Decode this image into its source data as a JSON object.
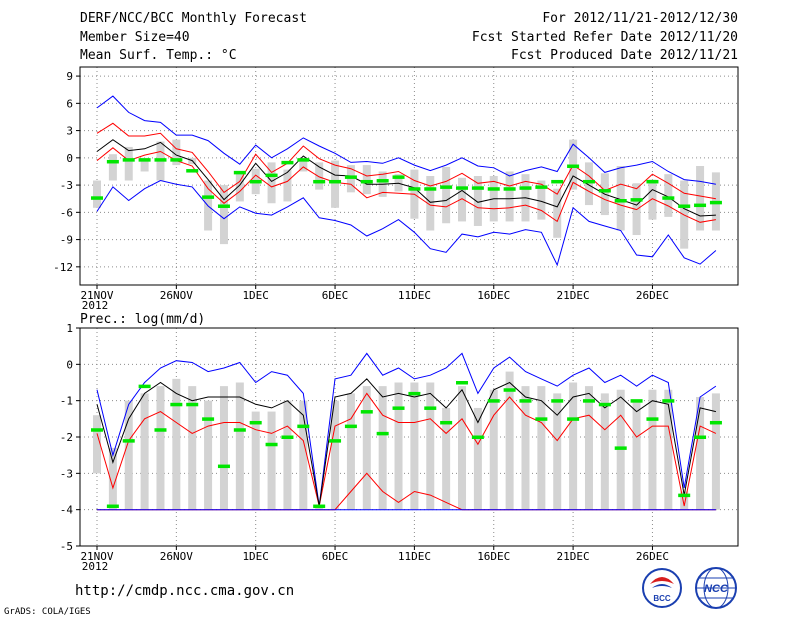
{
  "header": {
    "title": "DERF/NCC/BCC Monthly Forecast",
    "member_size": "Member Size=40",
    "variable": "Mean Surf. Temp.: °C",
    "period": "For 2012/11/21-2012/12/30",
    "started": "Fcst Started Refer Date 2012/11/20",
    "produced": "Fcst Produced Date 2012/11/21"
  },
  "footer": {
    "url": "http://cmdp.ncc.cma.gov.cn",
    "credit": "GrADS: COLA/IGES",
    "logo_left_text": "BCC",
    "logo_right_text": "NCC"
  },
  "colors": {
    "outer": "#0000ff",
    "inner": "#ff0000",
    "mean": "#000000",
    "bar": "#d3d3d3",
    "marker": "#00e600",
    "grid": "#8c8c8c"
  },
  "chart_data": [
    {
      "type": "line",
      "title": "Mean Surf. Temp.: °C",
      "xlabel": "",
      "ylabel": "",
      "ylim": [
        -14,
        10
      ],
      "yticks": [
        9,
        6,
        3,
        0,
        -3,
        -6,
        -9,
        -12
      ],
      "xtick_labels": [
        "21NOV",
        "26NOV",
        "1DEC",
        "6DEC",
        "11DEC",
        "16DEC",
        "21DEC",
        "26DEC"
      ],
      "xtick_days": [
        0,
        5,
        10,
        15,
        20,
        25,
        30,
        35
      ],
      "year_label": "2012",
      "days": 40,
      "series": [
        {
          "name": "upper-blue",
          "values": [
            5.5,
            6.8,
            5.0,
            4.1,
            3.9,
            2.5,
            2.5,
            1.9,
            0.5,
            -0.7,
            1.4,
            0.0,
            1.0,
            2.2,
            1.3,
            0.5,
            -0.5,
            -0.4,
            -0.6,
            0.0,
            -0.8,
            -1.4,
            -0.8,
            0.0,
            -0.9,
            -1.1,
            -2.0,
            -1.4,
            -1.0,
            -1.5,
            1.5,
            0.0,
            -1.6,
            -1.1,
            -0.8,
            -0.4,
            -1.5,
            -2.4,
            -2.6,
            -2.9
          ]
        },
        {
          "name": "upper-red",
          "values": [
            2.7,
            3.8,
            2.4,
            2.4,
            2.7,
            1.0,
            0.6,
            -1.5,
            -3.8,
            -2.6,
            0.4,
            -1.6,
            -0.6,
            1.3,
            -0.1,
            -0.8,
            -1.2,
            -2.0,
            -1.8,
            -1.5,
            -2.5,
            -3.1,
            -2.6,
            -1.7,
            -2.8,
            -2.6,
            -3.1,
            -2.6,
            -2.9,
            -4.0,
            -0.8,
            -2.0,
            -3.6,
            -2.9,
            -3.4,
            -1.8,
            -2.8,
            -3.9,
            -4.2,
            -4.5
          ]
        },
        {
          "name": "mean",
          "values": [
            0.7,
            2.0,
            0.8,
            1.0,
            1.7,
            0.3,
            -0.3,
            -2.4,
            -4.6,
            -3.0,
            -0.6,
            -2.6,
            -1.6,
            0.2,
            -1.0,
            -1.9,
            -2.0,
            -2.9,
            -2.9,
            -2.8,
            -3.3,
            -4.9,
            -4.7,
            -3.6,
            -4.9,
            -4.5,
            -4.5,
            -4.4,
            -4.8,
            -5.4,
            -2.0,
            -3.0,
            -4.0,
            -4.6,
            -5.2,
            -3.5,
            -4.3,
            -5.6,
            -6.4,
            -6.3
          ]
        },
        {
          "name": "lower-red",
          "values": [
            -0.3,
            1.1,
            -0.3,
            0.3,
            0.7,
            -0.3,
            -0.9,
            -3.4,
            -5.0,
            -3.7,
            -1.9,
            -3.2,
            -2.6,
            -1.0,
            -2.1,
            -2.7,
            -2.9,
            -4.4,
            -3.8,
            -3.9,
            -4.0,
            -5.2,
            -5.4,
            -4.5,
            -5.5,
            -5.6,
            -5.5,
            -5.2,
            -5.8,
            -7.0,
            -2.7,
            -3.7,
            -4.6,
            -5.2,
            -5.7,
            -4.5,
            -5.3,
            -6.3,
            -7.1,
            -6.8
          ]
        },
        {
          "name": "lower-blue",
          "values": [
            -5.9,
            -3.2,
            -4.7,
            -3.4,
            -2.5,
            -2.9,
            -3.2,
            -5.3,
            -6.7,
            -5.4,
            -6.1,
            -6.3,
            -5.4,
            -4.4,
            -6.6,
            -6.9,
            -7.4,
            -8.6,
            -7.8,
            -6.8,
            -8.2,
            -10.0,
            -10.4,
            -8.4,
            -8.7,
            -8.2,
            -8.4,
            -7.9,
            -8.2,
            -11.8,
            -5.5,
            -7.0,
            -7.5,
            -8.0,
            -10.7,
            -10.9,
            -8.5,
            -11.0,
            -11.7,
            -10.2
          ]
        }
      ],
      "bars": {
        "low": [
          -5.5,
          -2.5,
          -2.5,
          -1.5,
          -2.5,
          -0.8,
          -0.7,
          -8.0,
          -9.5,
          -4.8,
          -4.0,
          -5.0,
          -4.8,
          -1.5,
          -3.5,
          -5.5,
          -3.8,
          -4.0,
          -4.3,
          -3.7,
          -6.7,
          -8.0,
          -7.2,
          -7.0,
          -7.5,
          -7.0,
          -7.0,
          -7.0,
          -6.8,
          -8.8,
          -3.5,
          -5.2,
          -6.3,
          -8.0,
          -8.5,
          -6.8,
          -6.5,
          -10.0,
          -8.0,
          -8.0
        ],
        "high": [
          -2.5,
          0.4,
          1.2,
          0.0,
          1.8,
          2.0,
          0.0,
          -2.5,
          -3.0,
          -1.5,
          -1.2,
          -0.5,
          -1.3,
          0.0,
          -0.5,
          -0.3,
          -0.8,
          -0.8,
          -1.5,
          -1.8,
          -1.3,
          -2.0,
          -1.0,
          -2.2,
          -2.0,
          -2.0,
          -1.5,
          -1.8,
          -2.5,
          -3.4,
          2.0,
          -0.5,
          -1.7,
          -0.9,
          -2.8,
          -2.4,
          -1.8,
          -2.5,
          -0.9,
          -1.6
        ]
      },
      "markers": [
        -4.4,
        -0.4,
        -0.2,
        -0.2,
        -0.2,
        -0.2,
        -1.4,
        -4.3,
        -5.3,
        -1.6,
        -2.6,
        -1.9,
        -0.5,
        -0.2,
        -2.6,
        -2.6,
        -2.1,
        -2.6,
        -2.5,
        -2.1,
        -3.4,
        -3.4,
        -3.2,
        -3.3,
        -3.3,
        -3.4,
        -3.4,
        -3.3,
        -3.2,
        -2.6,
        -0.9,
        -2.6,
        -3.6,
        -4.7,
        -4.6,
        -2.6,
        -4.4,
        -5.3,
        -5.2,
        -4.9
      ]
    },
    {
      "type": "line",
      "title": "Prec.: log(mm/d)",
      "xlabel": "",
      "ylabel": "",
      "ylim": [
        -5,
        1
      ],
      "yticks": [
        1,
        0,
        -1,
        -2,
        -3,
        -4,
        -5
      ],
      "xtick_labels": [
        "21NOV",
        "26NOV",
        "1DEC",
        "6DEC",
        "11DEC",
        "16DEC",
        "21DEC",
        "26DEC"
      ],
      "xtick_days": [
        0,
        5,
        10,
        15,
        20,
        25,
        30,
        35
      ],
      "year_label": "2012",
      "days": 40,
      "series": [
        {
          "name": "upper-blue",
          "values": [
            -0.7,
            -2.5,
            -1.1,
            -0.5,
            -0.1,
            0.1,
            0.05,
            -0.2,
            -0.1,
            0.05,
            -0.5,
            -0.2,
            -0.3,
            -0.8,
            -3.9,
            -0.4,
            -0.3,
            0.3,
            -0.3,
            -0.1,
            -0.4,
            -0.3,
            -0.1,
            0.3,
            -0.8,
            -0.1,
            0.2,
            -0.2,
            -0.4,
            -0.6,
            -0.3,
            -0.1,
            -0.5,
            -0.3,
            -0.6,
            -0.3,
            -0.5,
            -3.4,
            -0.9,
            -0.6
          ]
        },
        {
          "name": "upper-red",
          "values": [
            -1.9,
            -3.4,
            -2.1,
            -1.5,
            -1.3,
            -1.6,
            -1.9,
            -1.7,
            -1.6,
            -1.6,
            -1.8,
            -1.9,
            -1.7,
            -2.1,
            -3.9,
            -1.7,
            -1.5,
            -0.8,
            -1.4,
            -1.6,
            -1.6,
            -1.5,
            -1.9,
            -1.5,
            -2.2,
            -1.4,
            -0.9,
            -1.4,
            -1.6,
            -2.1,
            -1.5,
            -1.4,
            -1.8,
            -1.4,
            -2.0,
            -1.7,
            -1.7,
            -3.9,
            -1.7,
            -1.9
          ]
        },
        {
          "name": "mean",
          "values": [
            -1.1,
            -2.7,
            -1.5,
            -0.8,
            -0.5,
            -0.8,
            -1.0,
            -0.9,
            -0.9,
            -0.9,
            -1.1,
            -1.2,
            -1.0,
            -1.4,
            -3.9,
            -0.9,
            -0.8,
            -0.4,
            -0.9,
            -0.8,
            -0.9,
            -0.8,
            -1.2,
            -0.7,
            -1.6,
            -0.7,
            -0.5,
            -0.9,
            -1.0,
            -1.4,
            -0.9,
            -0.8,
            -1.2,
            -0.9,
            -1.3,
            -1.0,
            -1.1,
            -3.6,
            -1.2,
            -1.3
          ]
        },
        {
          "name": "lower-red",
          "values": [
            -4.0,
            -4.0,
            -4.0,
            -4.0,
            -4.0,
            -4.0,
            -4.0,
            -4.0,
            -4.0,
            -4.0,
            -4.0,
            -4.0,
            -4.0,
            -4.0,
            -4.0,
            -4.0,
            -3.5,
            -3.0,
            -3.5,
            -3.8,
            -3.5,
            -3.6,
            -3.8,
            -4.0,
            -4.0,
            -4.0,
            -4.0,
            -4.0,
            -4.0,
            -4.0,
            -4.0,
            -4.0,
            -4.0,
            -4.0,
            -4.0,
            -4.0,
            -4.0,
            -4.0,
            -4.0,
            -4.0
          ]
        },
        {
          "name": "lower-blue",
          "values": [
            -4.0,
            -4.0,
            -4.0,
            -4.0,
            -4.0,
            -4.0,
            -4.0,
            -4.0,
            -4.0,
            -4.0,
            -4.0,
            -4.0,
            -4.0,
            -4.0,
            -4.0,
            -4.0,
            -4.0,
            -4.0,
            -4.0,
            -4.0,
            -4.0,
            -4.0,
            -4.0,
            -4.0,
            -4.0,
            -4.0,
            -4.0,
            -4.0,
            -4.0,
            -4.0,
            -4.0,
            -4.0,
            -4.0,
            -4.0,
            -4.0,
            -4.0,
            -4.0,
            -4.0,
            -4.0,
            -4.0
          ]
        }
      ],
      "bars": {
        "low": [
          -3.0,
          -4.0,
          -4.0,
          -4.0,
          -4.0,
          -4.0,
          -4.0,
          -4.0,
          -4.0,
          -4.0,
          -4.0,
          -4.0,
          -4.0,
          -4.0,
          -4.0,
          -4.0,
          -4.0,
          -4.0,
          -4.0,
          -4.0,
          -4.0,
          -4.0,
          -4.0,
          -4.0,
          -4.0,
          -4.0,
          -4.0,
          -4.0,
          -4.0,
          -4.0,
          -4.0,
          -4.0,
          -4.0,
          -4.0,
          -4.0,
          -4.0,
          -4.0,
          -4.0,
          -4.0,
          -4.0
        ],
        "high": [
          -1.4,
          -2.3,
          -1.0,
          -0.8,
          -0.6,
          -0.4,
          -0.6,
          -1.0,
          -0.6,
          -0.5,
          -1.3,
          -1.3,
          -1.0,
          -1.0,
          -3.9,
          -1.0,
          -0.8,
          -0.6,
          -0.6,
          -0.5,
          -0.5,
          -0.5,
          -1.2,
          -0.6,
          -1.2,
          -0.7,
          -0.2,
          -0.6,
          -0.6,
          -0.8,
          -0.5,
          -0.6,
          -0.8,
          -0.7,
          -1.0,
          -0.7,
          -0.7,
          -3.5,
          -0.9,
          -0.8
        ]
      },
      "markers": [
        -1.8,
        -3.9,
        -2.1,
        -0.6,
        -1.8,
        -1.1,
        -1.1,
        -1.5,
        -2.8,
        -1.8,
        -1.6,
        -2.2,
        -2.0,
        -1.7,
        -3.9,
        -2.1,
        -1.7,
        -1.3,
        -1.9,
        -1.2,
        -0.8,
        -1.2,
        -1.6,
        -0.5,
        -2.0,
        -1.0,
        -0.7,
        -1.0,
        -1.5,
        -1.0,
        -1.5,
        -1.0,
        -1.1,
        -2.3,
        -1.0,
        -1.5,
        -1.0,
        -3.6,
        -2.0,
        -1.6
      ]
    }
  ]
}
